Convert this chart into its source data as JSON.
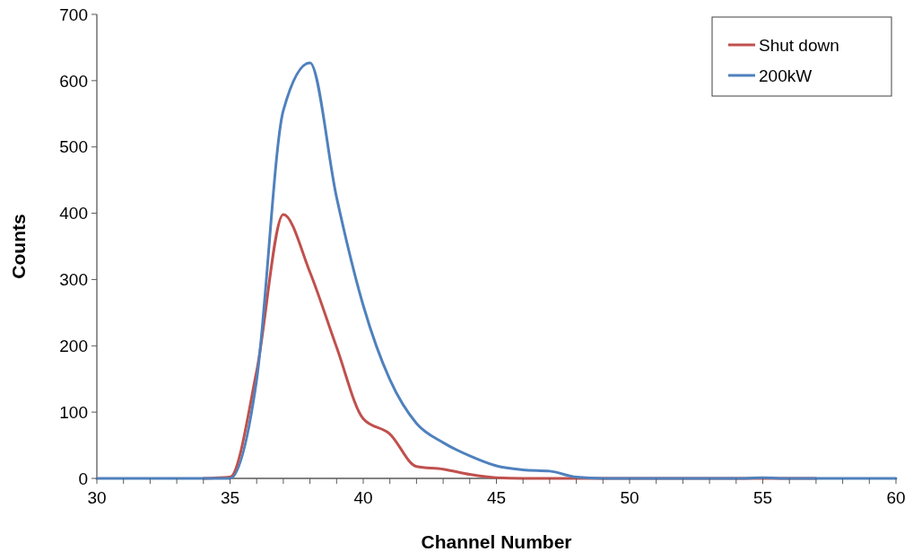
{
  "chart_data": {
    "type": "line",
    "xlabel": "Channel Number",
    "ylabel": "Counts",
    "x": [
      30,
      31,
      32,
      33,
      34,
      35,
      36,
      37,
      38,
      39,
      40,
      41,
      42,
      43,
      44,
      45,
      46,
      47,
      48,
      49,
      50,
      51,
      52,
      53,
      54,
      55,
      56,
      57,
      58,
      59,
      60
    ],
    "series": [
      {
        "name": "Shut down",
        "color": "#c0504d",
        "values": [
          null,
          null,
          null,
          null,
          0,
          2,
          162,
          398,
          311,
          198,
          90,
          67,
          18,
          14,
          6,
          1,
          0,
          0,
          0,
          0,
          0,
          0,
          0,
          0,
          0,
          0,
          0,
          0,
          null,
          null,
          null
        ]
      },
      {
        "name": "200kW",
        "color": "#4f81bd",
        "values": [
          0,
          0,
          0,
          0,
          0,
          0,
          149,
          555,
          627,
          424,
          261,
          149,
          83,
          54,
          34,
          19,
          13,
          11,
          2,
          0,
          0,
          0,
          0,
          0,
          0,
          1,
          0,
          0,
          0,
          0,
          0
        ]
      }
    ],
    "xlim": [
      30,
      60
    ],
    "xticks": [
      30,
      {
        "value": 31,
        "label": null
      },
      {
        "value": 32,
        "label": null
      },
      {
        "value": 33,
        "label": null
      },
      {
        "value": 34,
        "label": null
      },
      35,
      {
        "value": 36,
        "label": null
      },
      {
        "value": 37,
        "label": null
      },
      {
        "value": 38,
        "label": null
      },
      {
        "value": 39,
        "label": null
      },
      40,
      {
        "value": 41,
        "label": null
      },
      {
        "value": 42,
        "label": null
      },
      {
        "value": 43,
        "label": null
      },
      {
        "value": 44,
        "label": null
      },
      45,
      {
        "value": 46,
        "label": null
      },
      {
        "value": 47,
        "label": null
      },
      {
        "value": 48,
        "label": null
      },
      {
        "value": 49,
        "label": null
      },
      50,
      {
        "value": 51,
        "label": null
      },
      {
        "value": 52,
        "label": null
      },
      {
        "value": 53,
        "label": null
      },
      {
        "value": 54,
        "label": null
      },
      55,
      {
        "value": 56,
        "label": null
      },
      {
        "value": 57,
        "label": null
      },
      {
        "value": 58,
        "label": null
      },
      {
        "value": 59,
        "label": null
      },
      60
    ],
    "ylim": [
      0,
      700
    ],
    "yticks": [
      0,
      100,
      200,
      300,
      400,
      500,
      600,
      700
    ],
    "grid": false,
    "legend": "top right",
    "marker": "none",
    "line_style": "solid"
  }
}
